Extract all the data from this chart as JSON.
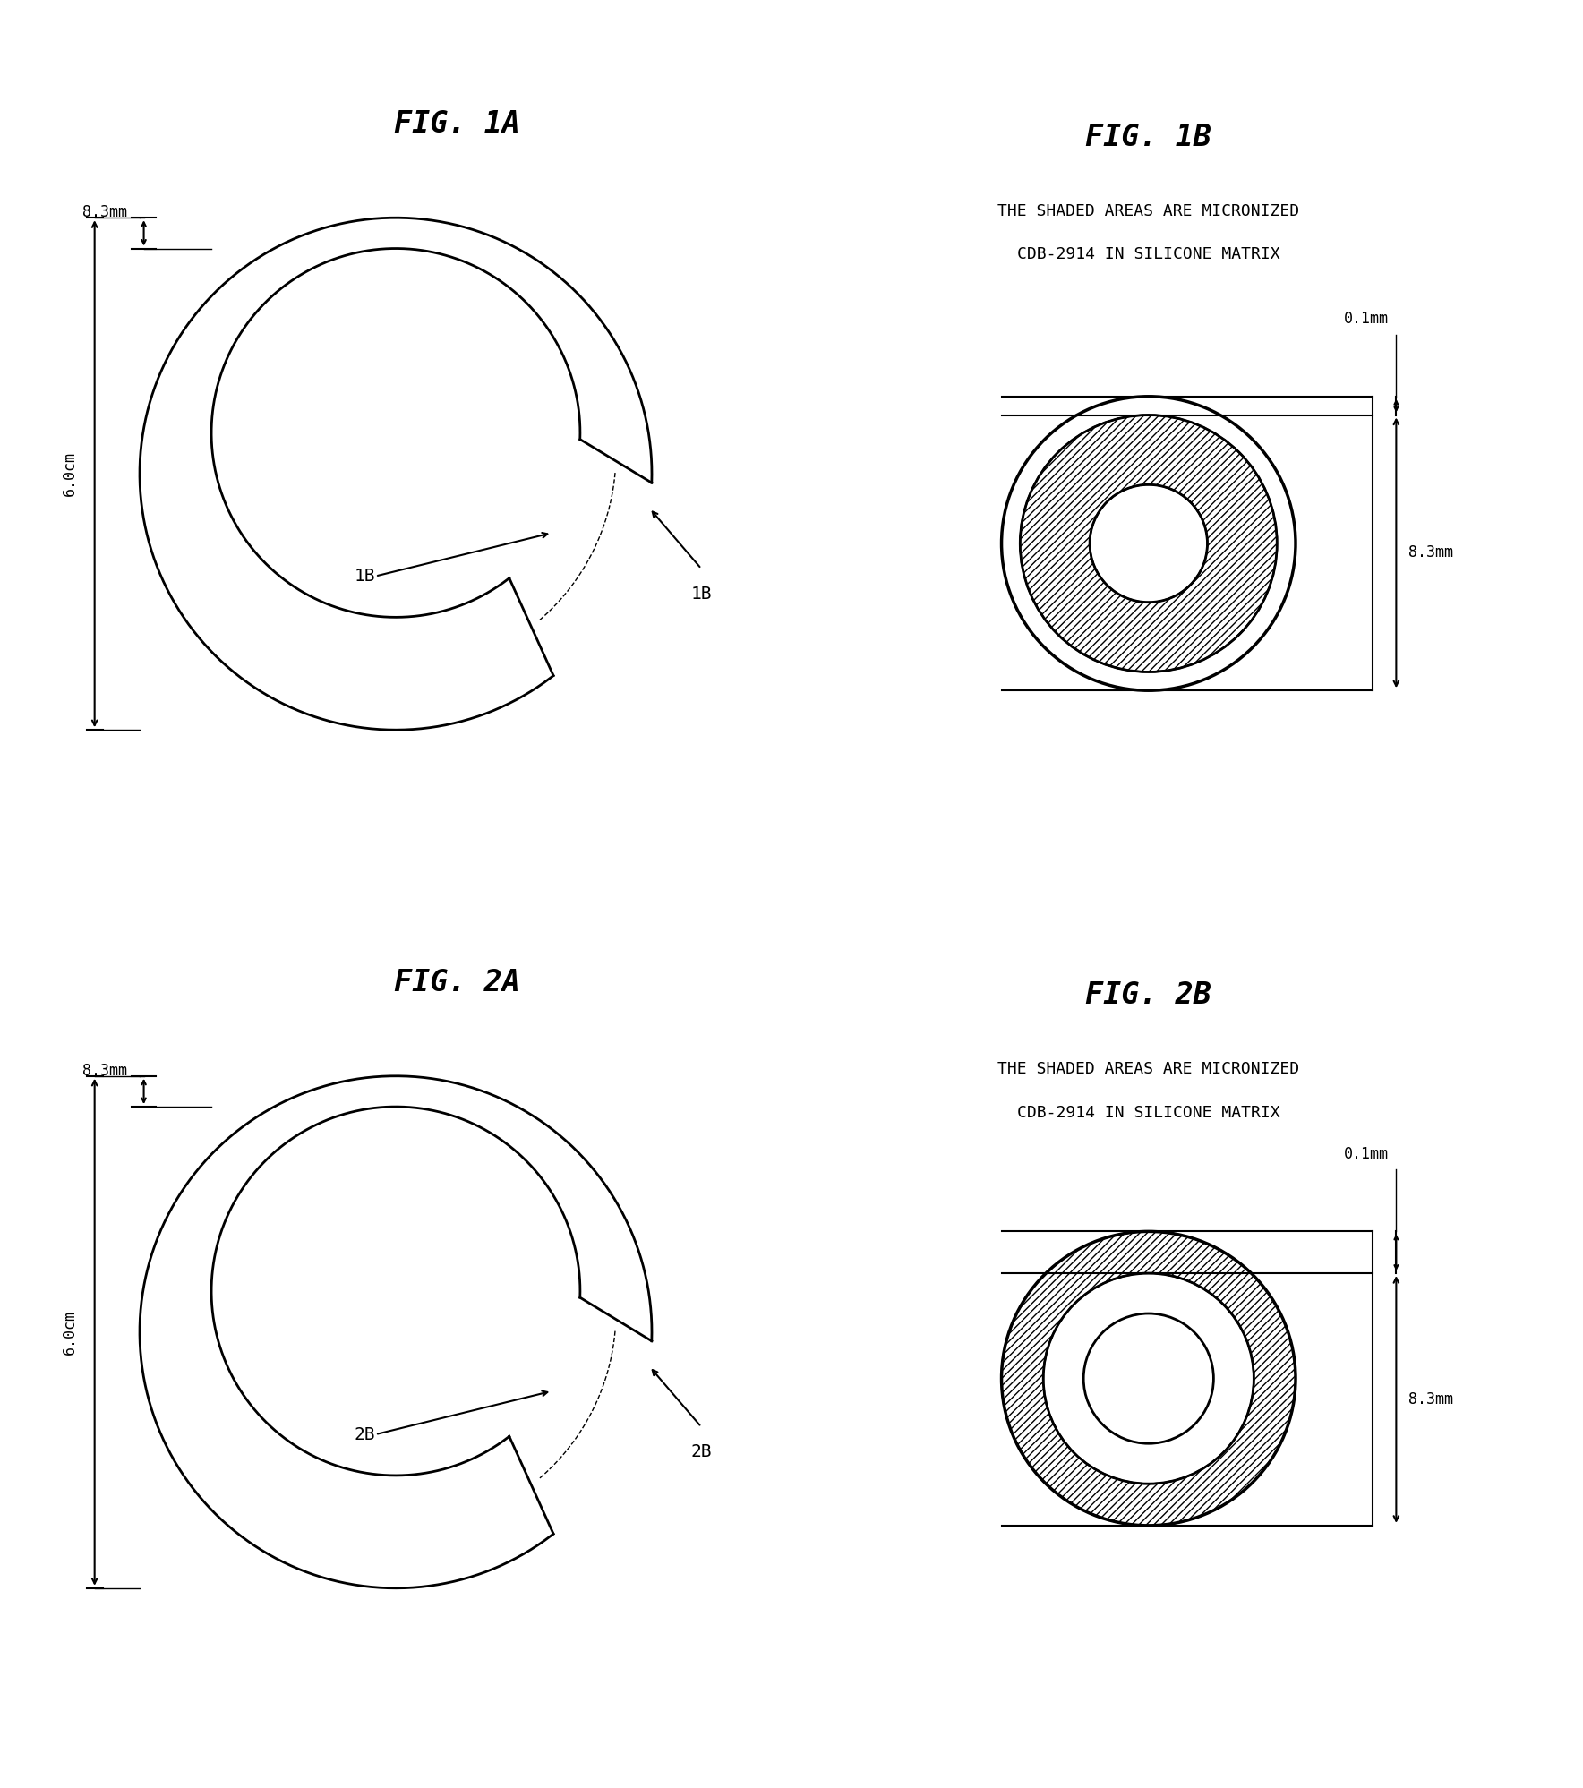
{
  "fig1a_title": "FIG. 1A",
  "fig1b_title": "FIG. 1B",
  "fig2a_title": "FIG. 2A",
  "fig2b_title": "FIG. 2B",
  "subtitle1": "THE SHADED AREAS ARE MICRONIZED",
  "subtitle2": "CDB-2914 IN SILICONE MATRIX",
  "label_8_3mm": "8.3mm",
  "label_6_0cm": "6.0cm",
  "label_0_1mm": "0.1mm",
  "label_1B": "1B",
  "label_2B": "2B",
  "bg_color": "#ffffff",
  "line_color": "#000000",
  "lw_main": 2.0,
  "lw_dim": 1.5,
  "fontsize_title": 24,
  "fontsize_sub": 13,
  "fontsize_label": 13,
  "fontsize_dim": 12
}
